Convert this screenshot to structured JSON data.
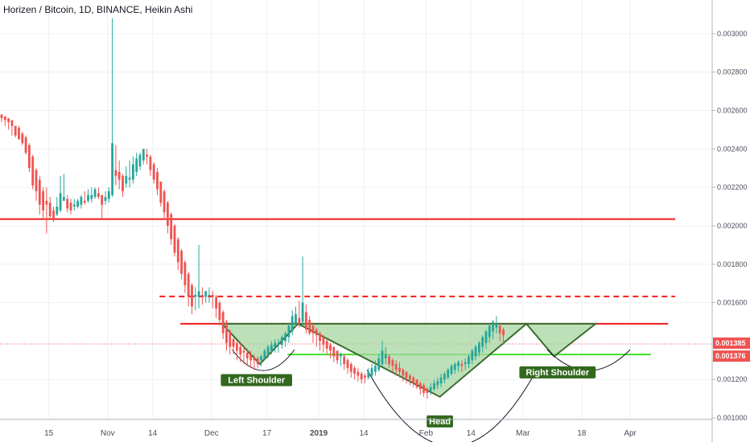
{
  "chart_data": {
    "type": "candlestick",
    "title": "Horizen / Bitcoin, 1D, BINANCE, Heikin Ashi",
    "y_ticks": [
      "0.003000",
      "0.002800",
      "0.002600",
      "0.002400",
      "0.002200",
      "0.002000",
      "0.001800",
      "0.001600",
      "0.001200",
      "0.001000"
    ],
    "x_ticks": [
      {
        "label": "15",
        "day": 14
      },
      {
        "label": "Nov",
        "day": 31
      },
      {
        "label": "14",
        "day": 44
      },
      {
        "label": "Dec",
        "day": 61
      },
      {
        "label": "17",
        "day": 77
      },
      {
        "label": "2019",
        "day": 92
      },
      {
        "label": "14",
        "day": 105
      },
      {
        "label": "Feb",
        "day": 123
      },
      {
        "label": "14",
        "day": 136
      },
      {
        "label": "Mar",
        "day": 151
      },
      {
        "label": "18",
        "day": 168
      },
      {
        "label": "Apr",
        "day": 182
      }
    ],
    "ylim": [
      0.001,
      0.0031
    ],
    "current_price": {
      "value": 0.001385,
      "label": "0.001385",
      "color": "#ef5350"
    },
    "prev_close": {
      "value": 0.001376,
      "label": "0.001376",
      "color": "#ef5350"
    },
    "colors": {
      "up": "#26a69a",
      "down": "#ef5350",
      "level": "#f21b1b",
      "neckline_support": "#3fe12c",
      "pattern_fill": "#a5d6a0",
      "pattern_stroke": "#3d6b30",
      "label_bg": "#33691e"
    },
    "levels": [
      {
        "type": "solid",
        "price": 0.002035,
        "from_day": -1,
        "to_day": 195
      },
      {
        "type": "dashed",
        "price": 0.001632,
        "from_day": 46,
        "to_day": 195
      },
      {
        "type": "solid",
        "price": 0.00149,
        "from_day": 52,
        "to_day": 193
      }
    ],
    "support_line": {
      "price": 0.00133,
      "from_day": 83,
      "to_day": 188
    },
    "pattern": {
      "points": [
        [
          64,
          0.00149
        ],
        [
          75,
          0.00128
        ],
        [
          86,
          0.00149
        ],
        [
          127,
          0.00111
        ],
        [
          152,
          0.00149
        ],
        [
          160,
          0.00132
        ],
        [
          172,
          0.00149
        ]
      ]
    },
    "annotations": [
      {
        "text": "Left Shoulder",
        "day": 74,
        "price": 0.00127
      },
      {
        "text": "Head",
        "day": 127,
        "price": 0.001055
      },
      {
        "text": "Right Shoulder",
        "day": 161,
        "price": 0.00131
      }
    ],
    "candles": [
      [
        0.00258,
        0.00257,
        0.00256,
        0.00254
      ],
      [
        0.00257,
        0.00256,
        0.00255,
        0.00252
      ],
      [
        0.00256,
        0.00255,
        0.00254,
        0.0025
      ],
      [
        0.00255,
        0.00253,
        0.00252,
        0.00247
      ],
      [
        0.00252,
        0.00252,
        0.00247,
        0.00246
      ],
      [
        0.00251,
        0.00252,
        0.00245,
        0.00245
      ],
      [
        0.00248,
        0.00249,
        0.00243,
        0.00242
      ],
      [
        0.00246,
        0.00247,
        0.00238,
        0.00237
      ],
      [
        0.00242,
        0.00243,
        0.0023,
        0.00228
      ],
      [
        0.00236,
        0.00237,
        0.00221,
        0.00219
      ],
      [
        0.00229,
        0.0023,
        0.00218,
        0.00213
      ],
      [
        0.00224,
        0.00226,
        0.00211,
        0.00206
      ],
      [
        0.00218,
        0.0022,
        0.00208,
        0.00203
      ],
      [
        0.00213,
        0.0022,
        0.00211,
        0.00196
      ],
      [
        0.00212,
        0.00215,
        0.00205,
        0.00203
      ],
      [
        0.00208,
        0.0021,
        0.00204,
        0.00202
      ],
      [
        0.00206,
        0.00215,
        0.0021,
        0.00205
      ],
      [
        0.00208,
        0.00226,
        0.00217,
        0.00207
      ],
      [
        0.00213,
        0.00227,
        0.00215,
        0.00213
      ],
      [
        0.00214,
        0.00216,
        0.00209,
        0.00207
      ],
      [
        0.00212,
        0.00214,
        0.00208,
        0.00206
      ],
      [
        0.0021,
        0.00214,
        0.00211,
        0.00208
      ],
      [
        0.0021,
        0.00214,
        0.00213,
        0.00209
      ],
      [
        0.00211,
        0.00216,
        0.00215,
        0.00209
      ],
      [
        0.00213,
        0.00218,
        0.00212,
        0.00211
      ],
      [
        0.00213,
        0.00219,
        0.00216,
        0.00212
      ],
      [
        0.00214,
        0.0022,
        0.00216,
        0.00212
      ],
      [
        0.00215,
        0.0022,
        0.00219,
        0.00214
      ],
      [
        0.00217,
        0.0022,
        0.00215,
        0.00214
      ],
      [
        0.00216,
        0.00216,
        0.00211,
        0.00204
      ],
      [
        0.00213,
        0.00218,
        0.00215,
        0.00211
      ],
      [
        0.00214,
        0.0022,
        0.00218,
        0.00212
      ],
      [
        0.00216,
        0.00308,
        0.00243,
        0.00215
      ],
      [
        0.00229,
        0.00242,
        0.00226,
        0.00221
      ],
      [
        0.00228,
        0.00234,
        0.00224,
        0.00219
      ],
      [
        0.00226,
        0.00227,
        0.00218,
        0.00215
      ],
      [
        0.00222,
        0.00231,
        0.00226,
        0.0022
      ],
      [
        0.00224,
        0.00234,
        0.00225,
        0.0022
      ],
      [
        0.00224,
        0.00236,
        0.00232,
        0.00222
      ],
      [
        0.00228,
        0.00238,
        0.00235,
        0.00226
      ],
      [
        0.00231,
        0.00238,
        0.00237,
        0.00229
      ],
      [
        0.00234,
        0.0024,
        0.0024,
        0.00232
      ],
      [
        0.00237,
        0.0024,
        0.00236,
        0.00232
      ],
      [
        0.00236,
        0.00237,
        0.00229,
        0.00226
      ],
      [
        0.00232,
        0.00233,
        0.00224,
        0.00222
      ],
      [
        0.00228,
        0.0023,
        0.00219,
        0.00216
      ],
      [
        0.00223,
        0.00223,
        0.00212,
        0.0021
      ],
      [
        0.00218,
        0.00219,
        0.00207,
        0.00203
      ],
      [
        0.00212,
        0.00213,
        0.002,
        0.00196
      ],
      [
        0.00206,
        0.00207,
        0.00193,
        0.0019
      ],
      [
        0.002,
        0.00201,
        0.00186,
        0.00184
      ],
      [
        0.00193,
        0.00194,
        0.00181,
        0.00177
      ],
      [
        0.00187,
        0.00188,
        0.00175,
        0.00172
      ],
      [
        0.00181,
        0.00182,
        0.00169,
        0.00165
      ],
      [
        0.00175,
        0.00176,
        0.00163,
        0.00158
      ],
      [
        0.00169,
        0.0017,
        0.00158,
        0.00154
      ],
      [
        0.00163,
        0.00168,
        0.00164,
        0.00156
      ],
      [
        0.00163,
        0.0019,
        0.00166,
        0.00157
      ],
      [
        0.00164,
        0.00168,
        0.00163,
        0.00159
      ],
      [
        0.00163,
        0.00166,
        0.00166,
        0.0016
      ],
      [
        0.00164,
        0.00168,
        0.00164,
        0.0016
      ],
      [
        0.00164,
        0.00166,
        0.00163,
        0.00157
      ],
      [
        0.00163,
        0.00164,
        0.00157,
        0.00152
      ],
      [
        0.0016,
        0.00161,
        0.00151,
        0.00148
      ],
      [
        0.00155,
        0.00156,
        0.00144,
        0.00141
      ],
      [
        0.0015,
        0.00151,
        0.00139,
        0.00135
      ],
      [
        0.00145,
        0.00146,
        0.00137,
        0.00133
      ],
      [
        0.00141,
        0.00142,
        0.00137,
        0.00133
      ],
      [
        0.00139,
        0.0014,
        0.00135,
        0.0013
      ],
      [
        0.00137,
        0.00139,
        0.00133,
        0.00129
      ],
      [
        0.00135,
        0.00137,
        0.00134,
        0.00128
      ],
      [
        0.00134,
        0.00136,
        0.00131,
        0.00127
      ],
      [
        0.00133,
        0.00135,
        0.0013,
        0.00126
      ],
      [
        0.00131,
        0.00133,
        0.0013,
        0.00125
      ],
      [
        0.00131,
        0.00132,
        0.00128,
        0.00126
      ],
      [
        0.0013,
        0.00133,
        0.00132,
        0.00127
      ],
      [
        0.00131,
        0.00136,
        0.00135,
        0.0013
      ],
      [
        0.00133,
        0.00138,
        0.00137,
        0.00131
      ],
      [
        0.00135,
        0.0014,
        0.00138,
        0.00133
      ],
      [
        0.00137,
        0.00141,
        0.00139,
        0.00134
      ],
      [
        0.00138,
        0.00141,
        0.00139,
        0.00134
      ],
      [
        0.00138,
        0.00143,
        0.00142,
        0.00136
      ],
      [
        0.0014,
        0.00145,
        0.00144,
        0.00137
      ],
      [
        0.00142,
        0.00149,
        0.00148,
        0.00139
      ],
      [
        0.00145,
        0.00156,
        0.00153,
        0.00143
      ],
      [
        0.00149,
        0.00158,
        0.00154,
        0.00147
      ],
      [
        0.00152,
        0.00161,
        0.00149,
        0.00147
      ],
      [
        0.0015,
        0.00184,
        0.0016,
        0.00148
      ],
      [
        0.00155,
        0.00159,
        0.00146,
        0.00144
      ],
      [
        0.00151,
        0.00153,
        0.00144,
        0.00143
      ],
      [
        0.00148,
        0.00149,
        0.00144,
        0.00139
      ],
      [
        0.00146,
        0.00147,
        0.00143,
        0.00137
      ],
      [
        0.00144,
        0.00145,
        0.0014,
        0.00135
      ],
      [
        0.00142,
        0.00143,
        0.00138,
        0.00134
      ],
      [
        0.0014,
        0.00141,
        0.00136,
        0.00133
      ],
      [
        0.00138,
        0.00139,
        0.00135,
        0.00131
      ],
      [
        0.00137,
        0.00137,
        0.00132,
        0.00129
      ],
      [
        0.00135,
        0.00135,
        0.0013,
        0.00128
      ],
      [
        0.00132,
        0.00134,
        0.00133,
        0.00127
      ],
      [
        0.00132,
        0.00133,
        0.00128,
        0.00125
      ],
      [
        0.0013,
        0.00131,
        0.00126,
        0.00123
      ],
      [
        0.00128,
        0.00129,
        0.00124,
        0.00121
      ],
      [
        0.00126,
        0.00127,
        0.00123,
        0.0012
      ],
      [
        0.00124,
        0.00126,
        0.00122,
        0.00119
      ],
      [
        0.00123,
        0.00124,
        0.0012,
        0.00118
      ],
      [
        0.00122,
        0.00123,
        0.00121,
        0.00118
      ],
      [
        0.00121,
        0.00126,
        0.00124,
        0.0012
      ],
      [
        0.00122,
        0.00128,
        0.00126,
        0.00121
      ],
      [
        0.00124,
        0.0013,
        0.00127,
        0.00122
      ],
      [
        0.00125,
        0.00133,
        0.00131,
        0.00124
      ],
      [
        0.00128,
        0.0014,
        0.00135,
        0.00127
      ],
      [
        0.00131,
        0.00137,
        0.00133,
        0.00128
      ],
      [
        0.00132,
        0.00133,
        0.00128,
        0.00126
      ],
      [
        0.0013,
        0.00131,
        0.00127,
        0.00124
      ],
      [
        0.00128,
        0.0013,
        0.00125,
        0.00122
      ],
      [
        0.00126,
        0.00129,
        0.00124,
        0.00121
      ],
      [
        0.00125,
        0.00126,
        0.00122,
        0.00119
      ],
      [
        0.00124,
        0.00124,
        0.00121,
        0.00118
      ],
      [
        0.00122,
        0.00123,
        0.0012,
        0.00117
      ],
      [
        0.00121,
        0.00122,
        0.00118,
        0.00116
      ],
      [
        0.0012,
        0.0012,
        0.00116,
        0.00115
      ],
      [
        0.00118,
        0.00119,
        0.00115,
        0.00112
      ],
      [
        0.00117,
        0.00118,
        0.00113,
        0.00111
      ],
      [
        0.00115,
        0.00116,
        0.00113,
        0.0011
      ],
      [
        0.00114,
        0.00118,
        0.00116,
        0.00112
      ],
      [
        0.00115,
        0.0012,
        0.00118,
        0.00114
      ],
      [
        0.00117,
        0.00121,
        0.00119,
        0.00115
      ],
      [
        0.00118,
        0.00123,
        0.00121,
        0.00116
      ],
      [
        0.0012,
        0.00124,
        0.00123,
        0.00118
      ],
      [
        0.00121,
        0.00126,
        0.00125,
        0.0012
      ],
      [
        0.00123,
        0.00128,
        0.00127,
        0.00122
      ],
      [
        0.00125,
        0.00129,
        0.00128,
        0.00123
      ],
      [
        0.00127,
        0.0013,
        0.00129,
        0.00124
      ],
      [
        0.00128,
        0.0013,
        0.00127,
        0.00124
      ],
      [
        0.00128,
        0.00131,
        0.00129,
        0.00125
      ],
      [
        0.00128,
        0.00133,
        0.00132,
        0.00126
      ],
      [
        0.0013,
        0.00136,
        0.00135,
        0.00128
      ],
      [
        0.00132,
        0.00138,
        0.00137,
        0.0013
      ],
      [
        0.00134,
        0.0014,
        0.00139,
        0.00132
      ],
      [
        0.00137,
        0.00143,
        0.00142,
        0.00134
      ],
      [
        0.00139,
        0.00146,
        0.00145,
        0.00136
      ],
      [
        0.00142,
        0.00149,
        0.00148,
        0.00139
      ],
      [
        0.00145,
        0.00151,
        0.0015,
        0.00141
      ],
      [
        0.00147,
        0.00153,
        0.00149,
        0.00144
      ],
      [
        0.00148,
        0.00149,
        0.00144,
        0.0014
      ],
      [
        0.00146,
        0.00147,
        0.00143,
        0.00138
      ]
    ]
  },
  "page": {
    "title": "Horizen / Bitcoin, 1D, BINANCE, Heikin Ashi",
    "labels": {
      "left_shoulder": "Left Shoulder",
      "head": "Head",
      "right_shoulder": "Right Shoulder"
    }
  }
}
